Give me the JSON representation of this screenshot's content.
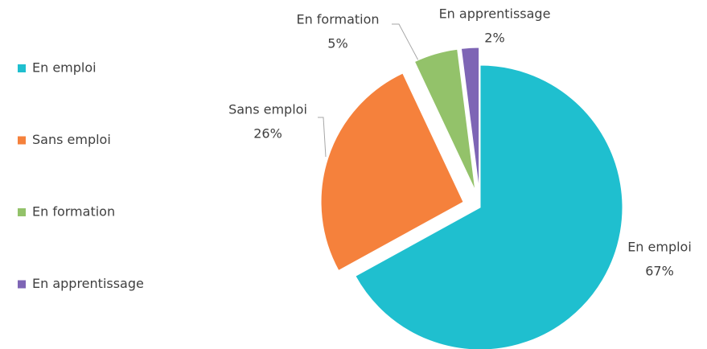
{
  "chart_data": {
    "type": "pie",
    "categories": [
      "En emploi",
      "Sans emploi",
      "En formation",
      "En apprentissage"
    ],
    "values": [
      67,
      26,
      5,
      2
    ],
    "value_labels": [
      "67%",
      "26%",
      "5%",
      "2%"
    ],
    "colors": [
      "#1fbfcf",
      "#f5813c",
      "#93c26a",
      "#7e65b5"
    ],
    "legend": "left"
  }
}
